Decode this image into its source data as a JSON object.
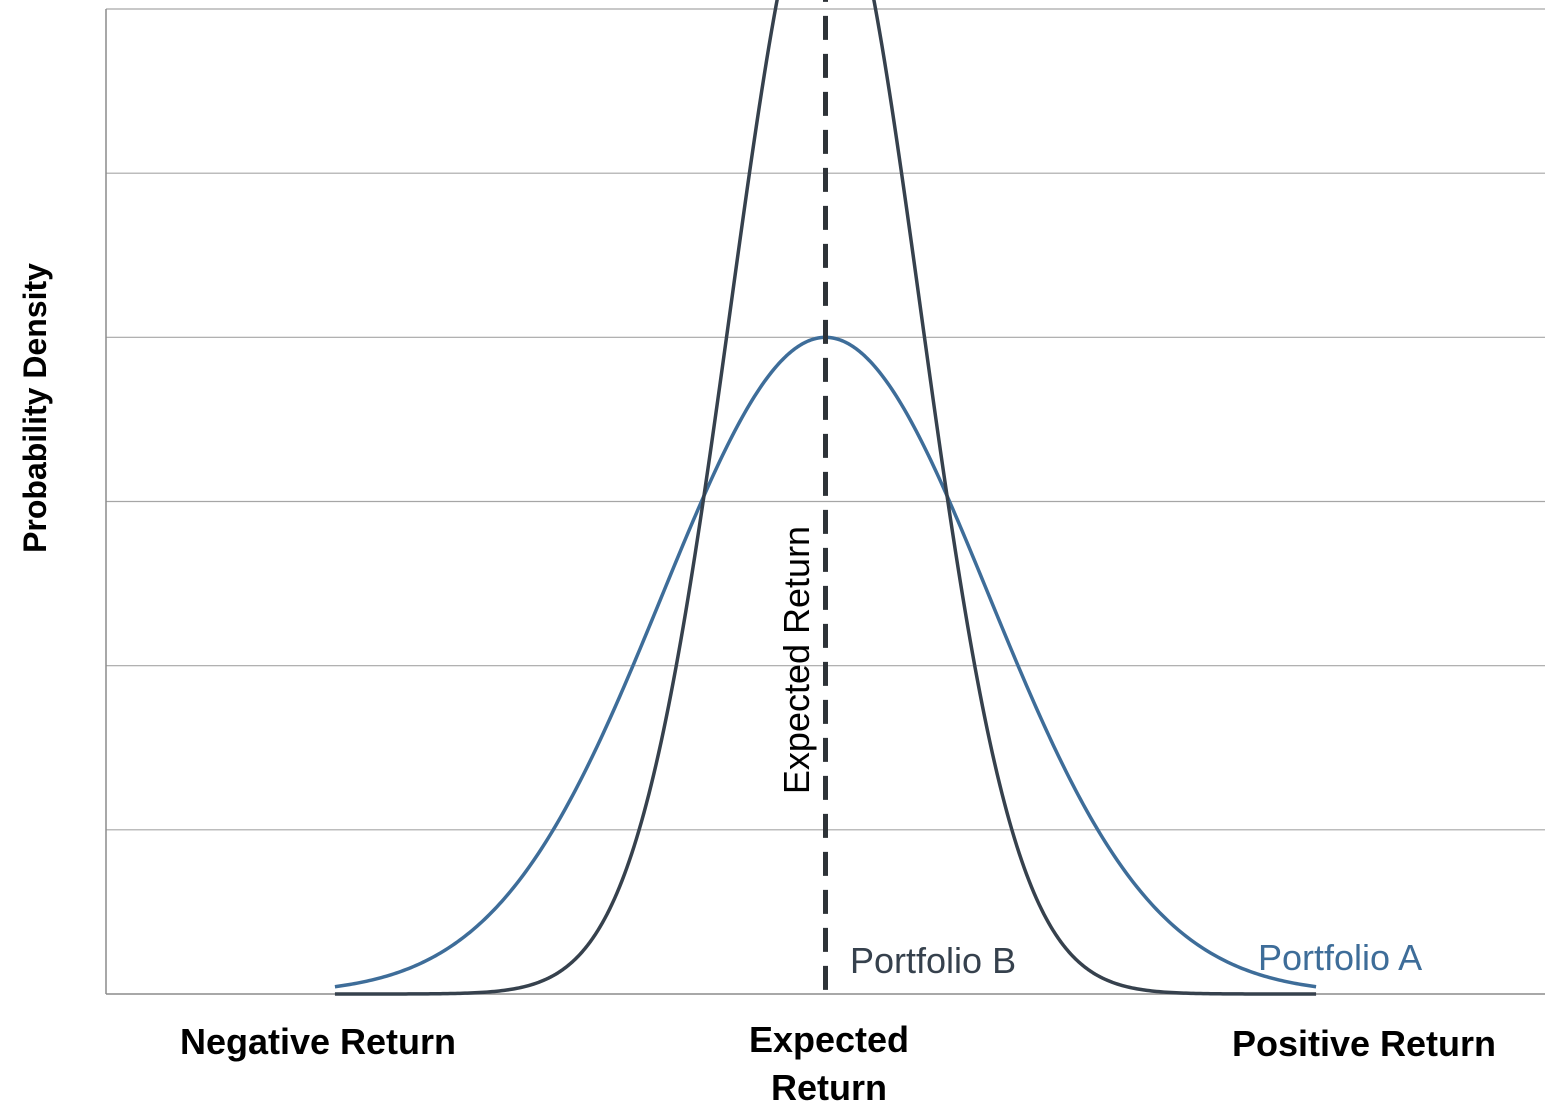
{
  "chart_data": {
    "type": "line",
    "title": "",
    "ylabel": "Probability Density",
    "x_tick_labels": [
      "Negative Return",
      "Expected",
      "Return",
      "Positive Return"
    ],
    "xlim": [
      -4.4,
      4.4
    ],
    "ylim": [
      0,
      6
    ],
    "grid": true,
    "expected_return": 0,
    "expected_return_label": "Expected Return",
    "series": [
      {
        "name": "Portfolio A",
        "color": "#3e6d99",
        "mean": 0,
        "sigma": 1.0,
        "x_range": [
          -3.0,
          3.0
        ]
      },
      {
        "name": "Portfolio B",
        "color": "#36414d",
        "mean": 0,
        "sigma": 0.58,
        "x_range": [
          -3.0,
          3.0
        ]
      }
    ],
    "colors": {
      "grid": "#a6a6a6",
      "axis": "#8c8c8c",
      "expected_line": "#2e3338"
    }
  }
}
